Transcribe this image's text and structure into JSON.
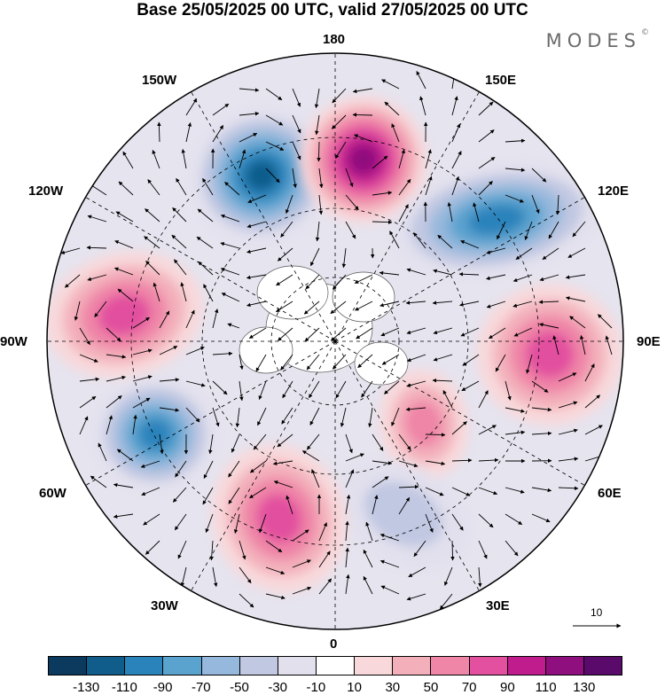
{
  "title": "Base 25/05/2025 00 UTC, valid 27/05/2025 00 UTC",
  "brand": {
    "name": "MODES",
    "mark": "©"
  },
  "map": {
    "projection": "north-polar-stereographic",
    "longitude_labels": [
      "180",
      "150E",
      "120E",
      "90E",
      "60E",
      "30E",
      "0",
      "30W",
      "60W",
      "90W",
      "120W",
      "150W"
    ],
    "field": "shaded anomaly with wind vectors",
    "anomaly_centers": [
      {
        "sign": "negative",
        "near": "150W",
        "peak": -130
      },
      {
        "sign": "positive",
        "near": "180",
        "peak": 130
      },
      {
        "sign": "negative",
        "near": "120E",
        "peak": -110
      },
      {
        "sign": "positive",
        "near": "90E",
        "peak": 90
      },
      {
        "sign": "positive",
        "near": "60E",
        "peak": 70
      },
      {
        "sign": "negative",
        "near": "30E",
        "peak": -50
      },
      {
        "sign": "positive",
        "near": "30W",
        "peak": 90
      },
      {
        "sign": "negative",
        "near": "60W",
        "peak": -110
      },
      {
        "sign": "positive",
        "near": "90W",
        "peak": 90
      }
    ]
  },
  "vector_reference": {
    "value": "10"
  },
  "colorbar": {
    "tick_labels": [
      "-130",
      "-110",
      "-90",
      "-70",
      "-50",
      "-30",
      "-10",
      "10",
      "30",
      "50",
      "70",
      "90",
      "110",
      "130"
    ],
    "colors": [
      "#0b3a5e",
      "#105d8c",
      "#2a83bb",
      "#5ba3cf",
      "#95b8dc",
      "#c1c8e2",
      "#e2e0ed",
      "#ffffff",
      "#f8d8da",
      "#f3b0bb",
      "#ef85a7",
      "#e2509f",
      "#c01c8e",
      "#8f0f7e",
      "#5a0a6b"
    ]
  }
}
